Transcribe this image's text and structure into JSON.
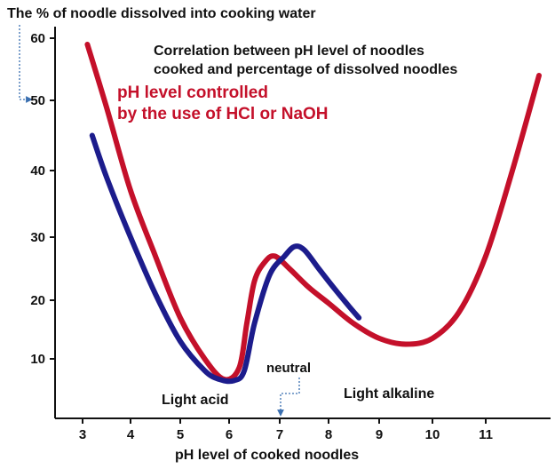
{
  "chart_data": {
    "type": "line",
    "ylabel": "The % of noodle dissolved into cooking water",
    "xlabel": "pH level of cooked noodles",
    "title_lines": [
      "Correlation between pH level of noodles",
      "cooked and percentage of dissolved noodles"
    ],
    "subtitle_lines": [
      "pH level controlled",
      "by the use of HCl or NaOH"
    ],
    "x_ticks": [
      "3",
      "4",
      "5",
      "6",
      "7",
      "8",
      "9",
      "10",
      "11"
    ],
    "y_ticks": [
      "60",
      "50",
      "40",
      "30",
      "20",
      "10"
    ],
    "annotations": {
      "neutral": "neutral",
      "light_acid": "Light acid",
      "light_alkaline": "Light alkaline"
    },
    "colors": {
      "red_series": "#c4102a",
      "blue_series": "#1c1c8c",
      "subtitle": "#c4102a",
      "arrow": "#3a6fb0"
    },
    "series": [
      {
        "color": "red",
        "x": [
          3.1,
          3.5,
          4.0,
          4.5,
          5.0,
          5.5,
          5.9,
          6.2,
          6.35,
          6.5,
          6.7,
          6.9,
          7.2,
          7.6,
          8.0,
          8.5,
          9.0,
          9.5,
          10.0,
          10.5,
          11.0,
          11.5,
          12.0
        ],
        "y": [
          59,
          49,
          37,
          27,
          17,
          10,
          6.5,
          8.5,
          16,
          23,
          26,
          27,
          25,
          22,
          19.5,
          16,
          13.5,
          12.5,
          13.5,
          18,
          27,
          40,
          54
        ]
      },
      {
        "color": "blue",
        "x": [
          3.2,
          3.5,
          4.0,
          4.5,
          5.0,
          5.5,
          5.8,
          6.1,
          6.3,
          6.5,
          6.8,
          7.1,
          7.3,
          7.5,
          7.8,
          8.1,
          8.4,
          8.6
        ],
        "y": [
          45,
          39,
          30,
          21,
          13,
          8,
          6.5,
          6.3,
          8,
          16,
          24,
          27,
          28.5,
          28,
          25,
          22,
          19,
          17
        ]
      }
    ]
  }
}
